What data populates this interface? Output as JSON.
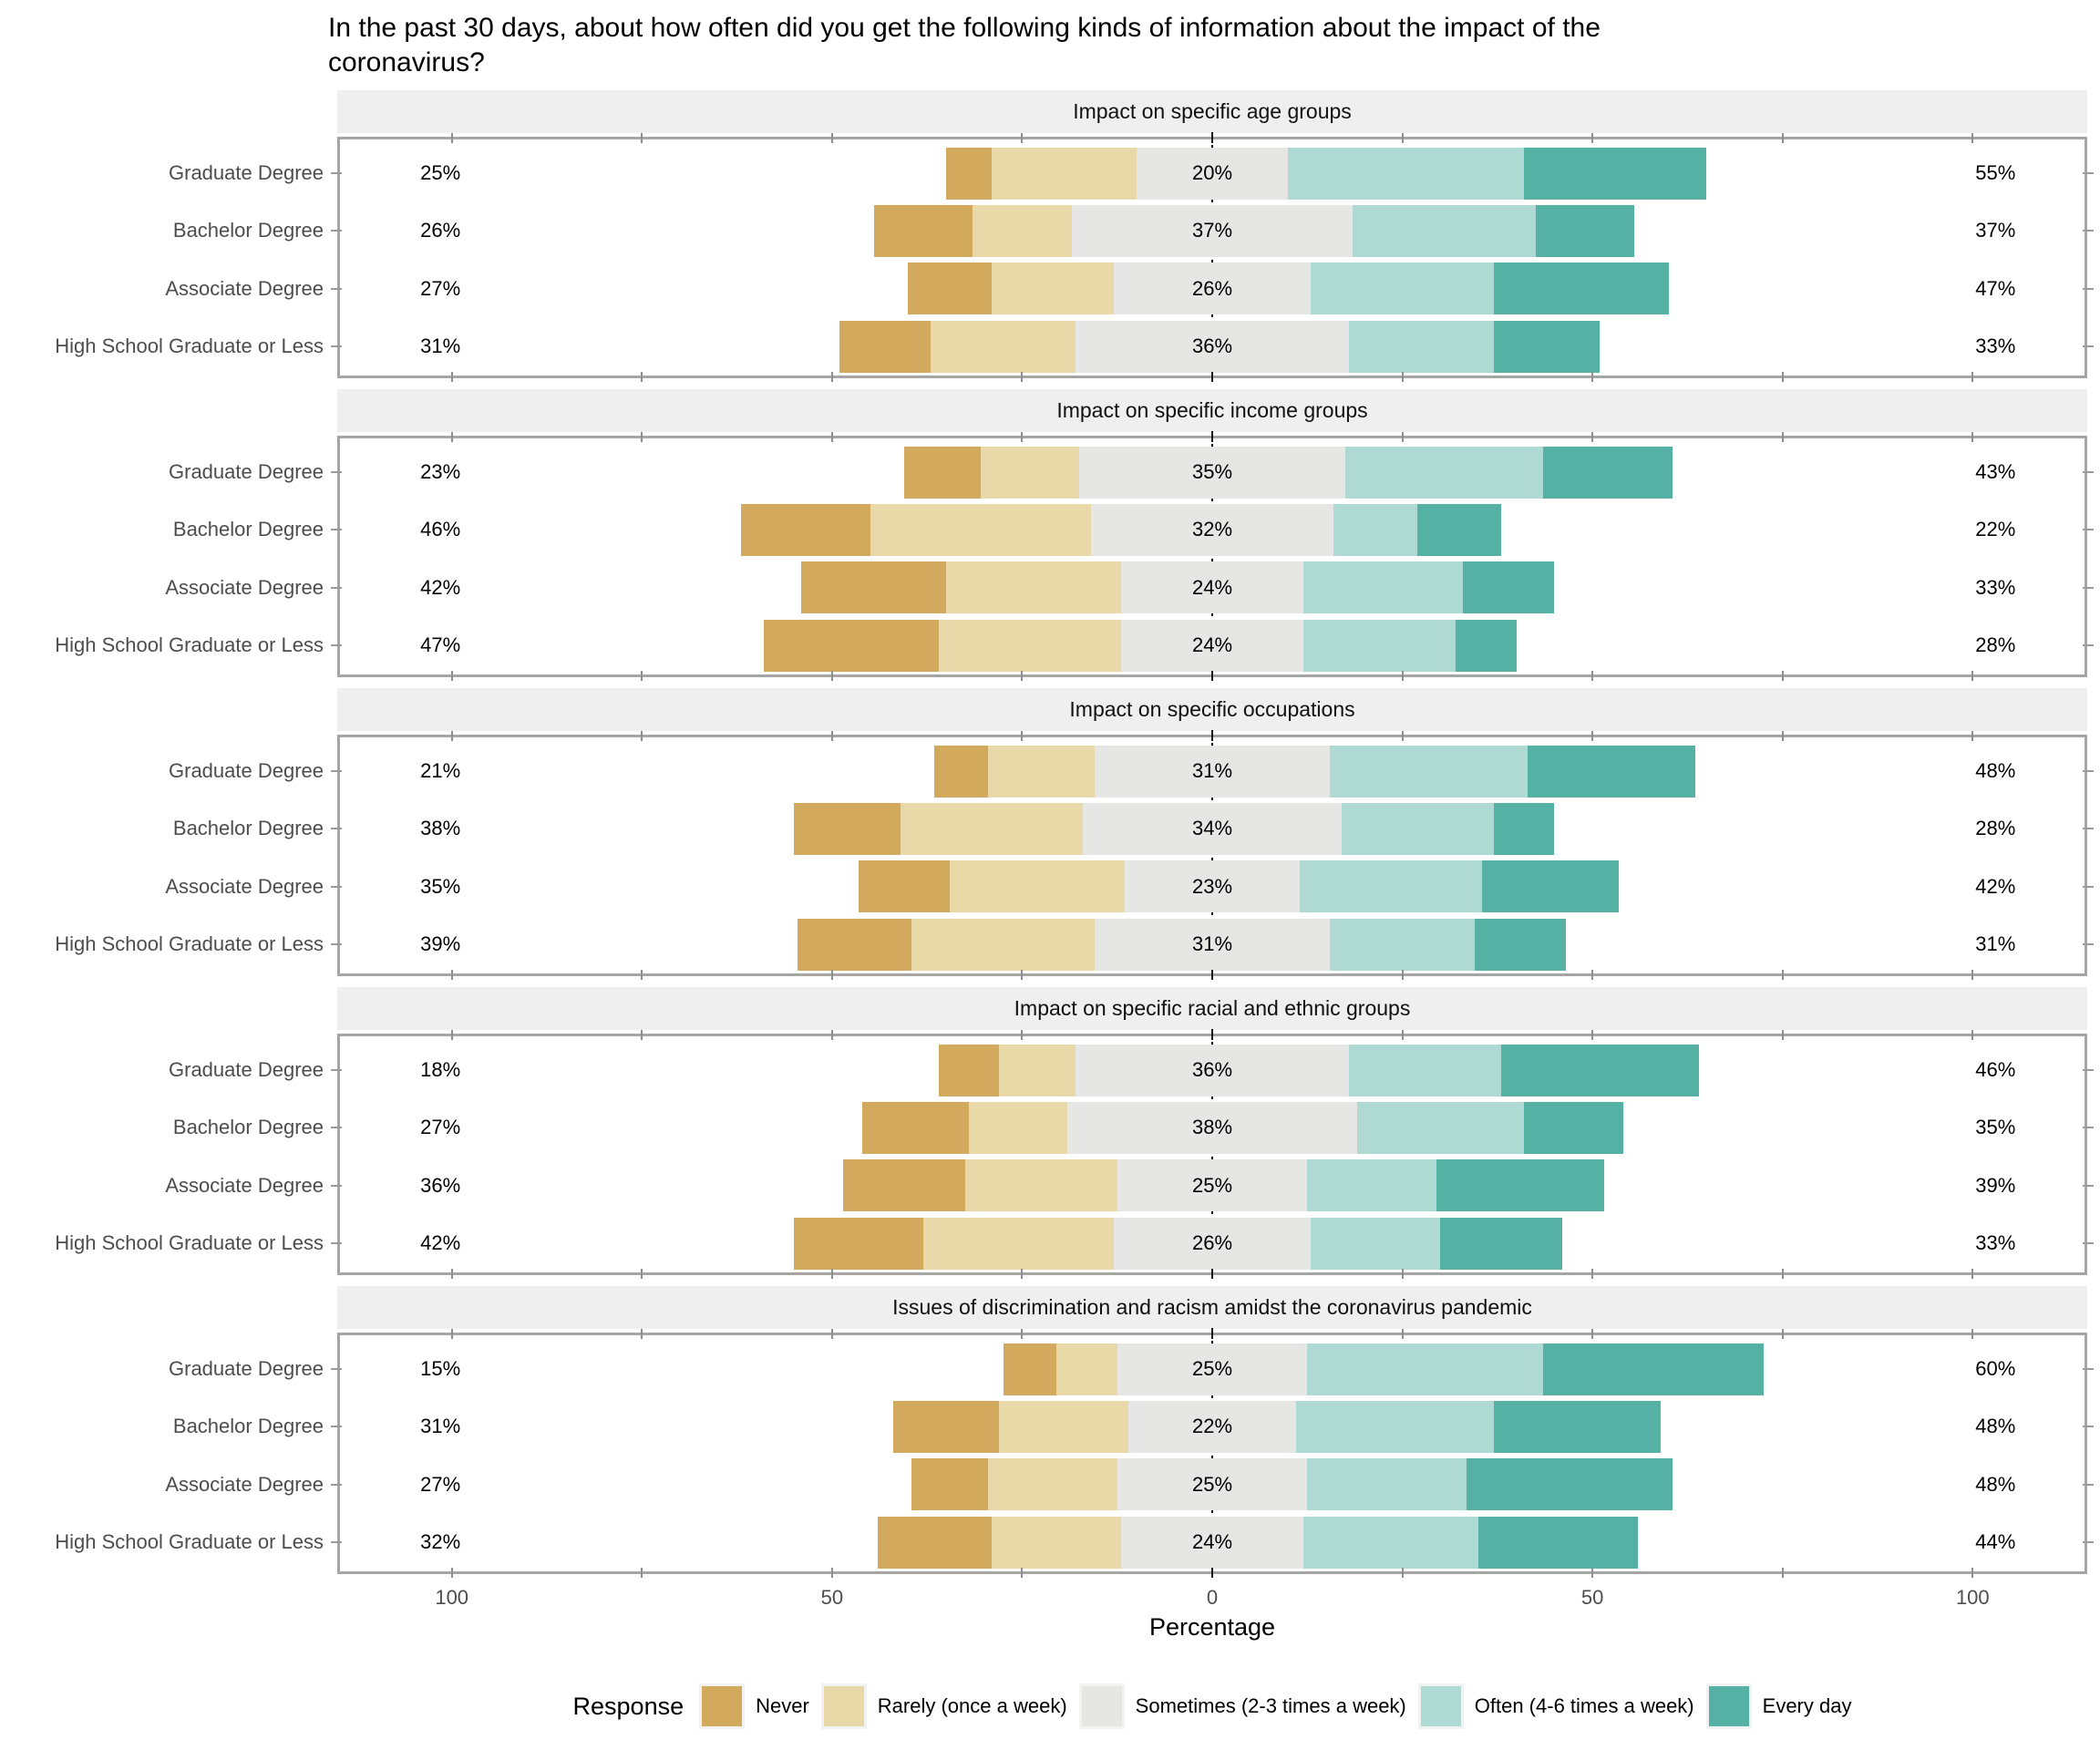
{
  "title": "In the past 30 days, about how often did you get the following kinds of information about the impact of the coronavirus?",
  "x_axis": {
    "label": "Percentage",
    "ticks": [
      {
        "value": -100,
        "label": "100"
      },
      {
        "value": -50,
        "label": "50"
      },
      {
        "value": 0,
        "label": "0"
      },
      {
        "value": 50,
        "label": "50"
      },
      {
        "value": 100,
        "label": "100"
      }
    ],
    "minor_tick_step": 25,
    "domain": [
      -115,
      115
    ]
  },
  "legend": {
    "title": "Response",
    "items": [
      {
        "label": "Never",
        "color": "#d3aa5d"
      },
      {
        "label": "Rarely (once a week)",
        "color": "#e9d8a8"
      },
      {
        "label": "Sometimes (2-3 times a week)",
        "color": "#e6e6e4"
      },
      {
        "label": "Often (4-6 times a week)",
        "color": "#aedad3"
      },
      {
        "label": "Every day",
        "color": "#56b1a5"
      }
    ]
  },
  "colors": {
    "panel_header_bg": "#efefef",
    "panel_border": "#a5a5a5",
    "axis_text": "#4d4d4d",
    "label_text": "#000000"
  },
  "chart_data": {
    "type": "bar",
    "subtype": "diverging-stacked-likert",
    "orientation": "horizontal",
    "stack_order": [
      "Never",
      "Rarely (once a week)",
      "Sometimes (2-3 times a week)",
      "Often (4-6 times a week)",
      "Every day"
    ],
    "centered_on": "Sometimes (2-3 times a week)",
    "row_categories": [
      "Graduate Degree",
      "Bachelor Degree",
      "Associate Degree",
      "High School Graduate or Less"
    ],
    "panels": [
      {
        "title": "Impact on specific age groups",
        "rows": [
          {
            "category": "Graduate Degree",
            "values": [
              6,
              19,
              20,
              31,
              24
            ],
            "labels": {
              "low": "25%",
              "mid": "20%",
              "high": "55%"
            }
          },
          {
            "category": "Bachelor Degree",
            "values": [
              13,
              13,
              37,
              24,
              13
            ],
            "labels": {
              "low": "26%",
              "mid": "37%",
              "high": "37%"
            }
          },
          {
            "category": "Associate Degree",
            "values": [
              11,
              16,
              26,
              24,
              23
            ],
            "labels": {
              "low": "27%",
              "mid": "26%",
              "high": "47%"
            }
          },
          {
            "category": "High School Graduate or Less",
            "values": [
              12,
              19,
              36,
              19,
              14
            ],
            "labels": {
              "low": "31%",
              "mid": "36%",
              "high": "33%"
            }
          }
        ]
      },
      {
        "title": "Impact on specific income groups",
        "rows": [
          {
            "category": "Graduate Degree",
            "values": [
              10,
              13,
              35,
              26,
              17
            ],
            "labels": {
              "low": "23%",
              "mid": "35%",
              "high": "43%"
            }
          },
          {
            "category": "Bachelor Degree",
            "values": [
              17,
              29,
              32,
              11,
              11
            ],
            "labels": {
              "low": "46%",
              "mid": "32%",
              "high": "22%"
            }
          },
          {
            "category": "Associate Degree",
            "values": [
              19,
              23,
              24,
              21,
              12
            ],
            "labels": {
              "low": "42%",
              "mid": "24%",
              "high": "33%"
            }
          },
          {
            "category": "High School Graduate or Less",
            "values": [
              23,
              24,
              24,
              20,
              8
            ],
            "labels": {
              "low": "47%",
              "mid": "24%",
              "high": "28%"
            }
          }
        ]
      },
      {
        "title": "Impact on specific occupations",
        "rows": [
          {
            "category": "Graduate Degree",
            "values": [
              7,
              14,
              31,
              26,
              22
            ],
            "labels": {
              "low": "21%",
              "mid": "31%",
              "high": "48%"
            }
          },
          {
            "category": "Bachelor Degree",
            "values": [
              14,
              24,
              34,
              20,
              8
            ],
            "labels": {
              "low": "38%",
              "mid": "34%",
              "high": "28%"
            }
          },
          {
            "category": "Associate Degree",
            "values": [
              12,
              23,
              23,
              24,
              18
            ],
            "labels": {
              "low": "35%",
              "mid": "23%",
              "high": "42%"
            }
          },
          {
            "category": "High School Graduate or Less",
            "values": [
              15,
              24,
              31,
              19,
              12
            ],
            "labels": {
              "low": "39%",
              "mid": "31%",
              "high": "31%"
            }
          }
        ]
      },
      {
        "title": "Impact on specific racial and ethnic groups",
        "rows": [
          {
            "category": "Graduate Degree",
            "values": [
              8,
              10,
              36,
              20,
              26
            ],
            "labels": {
              "low": "18%",
              "mid": "36%",
              "high": "46%"
            }
          },
          {
            "category": "Bachelor Degree",
            "values": [
              14,
              13,
              38,
              22,
              13
            ],
            "labels": {
              "low": "27%",
              "mid": "38%",
              "high": "35%"
            }
          },
          {
            "category": "Associate Degree",
            "values": [
              16,
              20,
              25,
              17,
              22
            ],
            "labels": {
              "low": "36%",
              "mid": "25%",
              "high": "39%"
            }
          },
          {
            "category": "High School Graduate or Less",
            "values": [
              17,
              25,
              26,
              17,
              16
            ],
            "labels": {
              "low": "42%",
              "mid": "26%",
              "high": "33%"
            }
          }
        ]
      },
      {
        "title": "Issues of discrimination and racism amidst the coronavirus pandemic",
        "rows": [
          {
            "category": "Graduate Degree",
            "values": [
              7,
              8,
              25,
              31,
              29
            ],
            "labels": {
              "low": "15%",
              "mid": "25%",
              "high": "60%"
            }
          },
          {
            "category": "Bachelor Degree",
            "values": [
              14,
              17,
              22,
              26,
              22
            ],
            "labels": {
              "low": "31%",
              "mid": "22%",
              "high": "48%"
            }
          },
          {
            "category": "Associate Degree",
            "values": [
              10,
              17,
              25,
              21,
              27
            ],
            "labels": {
              "low": "27%",
              "mid": "25%",
              "high": "48%"
            }
          },
          {
            "category": "High School Graduate or Less",
            "values": [
              15,
              17,
              24,
              23,
              21
            ],
            "labels": {
              "low": "32%",
              "mid": "24%",
              "high": "44%"
            }
          }
        ]
      }
    ]
  }
}
